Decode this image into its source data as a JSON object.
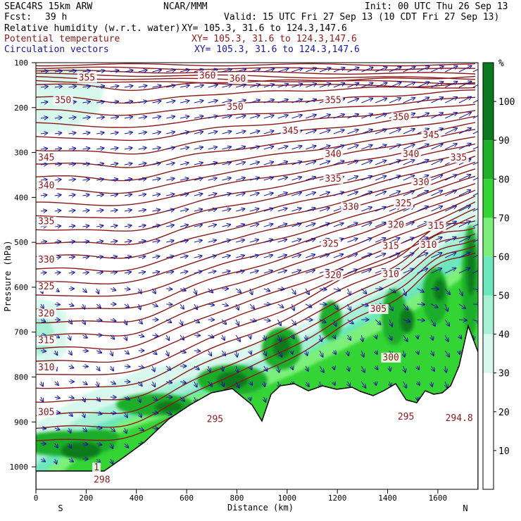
{
  "header": {
    "model": "SEAC4RS 15km ARW",
    "org": "NCAR/MMM",
    "init": "Init: 00 UTC Thu 26 Sep 13",
    "fcst_label": "Fcst:",
    "fcst_value": "39 h",
    "valid": "Valid: 15 UTC Fri 27 Sep 13 (10 CDT Fri 27 Sep 13)",
    "fields": [
      {
        "name": "Relative humidity (w.r.t. water)",
        "xy": "XY= 105.3, 31.6 to 124.3,147.6",
        "color": "#000000"
      },
      {
        "name": "Potential temperature",
        "xy": "XY= 105.3, 31.6 to 124.3,147.6",
        "color": "#8b1a1a"
      },
      {
        "name": "Circulation vectors",
        "xy": "XY= 105.3, 31.6 to 124.3,147.6",
        "color": "#1a1a9c"
      }
    ]
  },
  "chart_data": {
    "type": "cross-section",
    "xlabel": "Distance (km)",
    "ylabel": "Pressure (hPa)",
    "x_ticks": [
      0,
      200,
      400,
      600,
      800,
      1000,
      1200,
      1400,
      1600
    ],
    "y_ticks": [
      100,
      200,
      300,
      400,
      500,
      600,
      700,
      800,
      900,
      1000
    ],
    "xlim": [
      0,
      1760
    ],
    "ylim": [
      1050,
      100
    ],
    "end_labels": {
      "left": "S",
      "right": "N"
    },
    "colorbar": {
      "unit": "%",
      "ticks": [
        10,
        20,
        30,
        40,
        50,
        60,
        70,
        80,
        90,
        100
      ],
      "bins": [
        {
          "from": 0,
          "to": 30,
          "color": "#ffffff"
        },
        {
          "from": 30,
          "to": 40,
          "color": "#d8f8ee"
        },
        {
          "from": 40,
          "to": 50,
          "color": "#a6f0d6"
        },
        {
          "from": 50,
          "to": 60,
          "color": "#6ce6bc"
        },
        {
          "from": 60,
          "to": 70,
          "color": "#7cf07a"
        },
        {
          "from": 70,
          "to": 80,
          "color": "#35d435"
        },
        {
          "from": 80,
          "to": 90,
          "color": "#1fae2a"
        },
        {
          "from": 90,
          "to": 110,
          "color": "#0b7a1e"
        }
      ]
    },
    "theta_labels": [
      {
        "text": "355",
        "x": 170,
        "p": 140
      },
      {
        "text": "360",
        "x": 650,
        "p": 135
      },
      {
        "text": "360",
        "x": 770,
        "p": 142
      },
      {
        "text": "350",
        "x": 75,
        "p": 190
      },
      {
        "text": "350",
        "x": 760,
        "p": 205
      },
      {
        "text": "355",
        "x": 1150,
        "p": 190
      },
      {
        "text": "350",
        "x": 1420,
        "p": 228
      },
      {
        "text": "345",
        "x": 980,
        "p": 258
      },
      {
        "text": "345",
        "x": 1540,
        "p": 268
      },
      {
        "text": "345",
        "x": -30,
        "p": 318
      },
      {
        "text": "340",
        "x": 1150,
        "p": 310
      },
      {
        "text": "340",
        "x": 1460,
        "p": 310
      },
      {
        "text": "335",
        "x": 1650,
        "p": 318
      },
      {
        "text": "340",
        "x": -30,
        "p": 380
      },
      {
        "text": "335",
        "x": 1150,
        "p": 365
      },
      {
        "text": "330",
        "x": 1500,
        "p": 373
      },
      {
        "text": "325",
        "x": 1430,
        "p": 420
      },
      {
        "text": "330",
        "x": 1220,
        "p": 428
      },
      {
        "text": "335",
        "x": -30,
        "p": 460
      },
      {
        "text": "320",
        "x": 1400,
        "p": 468
      },
      {
        "text": "315",
        "x": 1560,
        "p": 470
      },
      {
        "text": "325",
        "x": 1140,
        "p": 510
      },
      {
        "text": "315",
        "x": 1380,
        "p": 515
      },
      {
        "text": "310",
        "x": 1530,
        "p": 512
      },
      {
        "text": "330",
        "x": -30,
        "p": 545
      },
      {
        "text": "320",
        "x": 1150,
        "p": 580
      },
      {
        "text": "310",
        "x": 1380,
        "p": 577
      },
      {
        "text": "325",
        "x": -30,
        "p": 605
      },
      {
        "text": "305",
        "x": 1330,
        "p": 655
      },
      {
        "text": "320",
        "x": -30,
        "p": 665
      },
      {
        "text": "315",
        "x": -30,
        "p": 725
      },
      {
        "text": "300",
        "x": 1380,
        "p": 763
      },
      {
        "text": "310",
        "x": -30,
        "p": 785
      },
      {
        "text": "305",
        "x": -30,
        "p": 885
      },
      {
        "text": "295",
        "x": 680,
        "p": 900
      },
      {
        "text": "295",
        "x": 1440,
        "p": 895
      },
      {
        "text": "294.8",
        "x": 1630,
        "p": 898
      },
      {
        "text": "1",
        "x": 230,
        "p": 1008
      },
      {
        "text": "298",
        "x": 230,
        "p": 1035
      }
    ]
  }
}
